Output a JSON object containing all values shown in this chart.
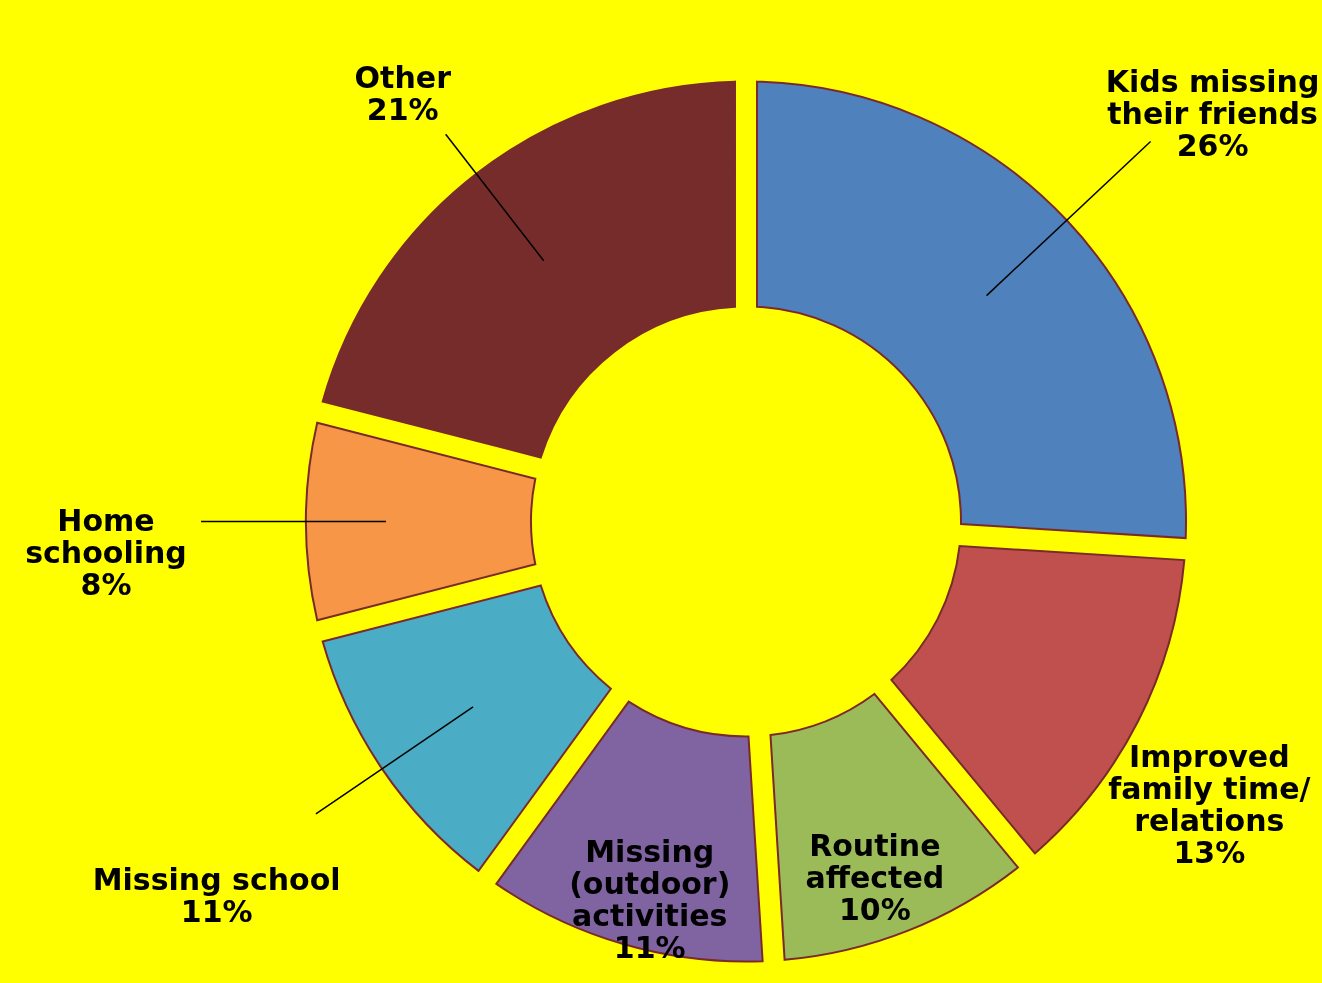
{
  "chart_data": {
    "type": "donut",
    "categories": [
      "Kids missing\ntheir friends",
      "Improved\nfamily time/\nrelations",
      "Routine\naffected",
      "Missing\n(outdoor)\nactivities",
      "Missing school",
      "Home\nschooling",
      "Other"
    ],
    "values": [
      26,
      13,
      10,
      11,
      11,
      8,
      21
    ],
    "value_labels": [
      "26%",
      "13%",
      "10%",
      "11%",
      "11%",
      "8%",
      "21%"
    ],
    "colors": [
      "#4f81bd",
      "#c0504d",
      "#9bbb59",
      "#8064a2",
      "#4bacc6",
      "#f79646",
      "#772c2c"
    ]
  }
}
